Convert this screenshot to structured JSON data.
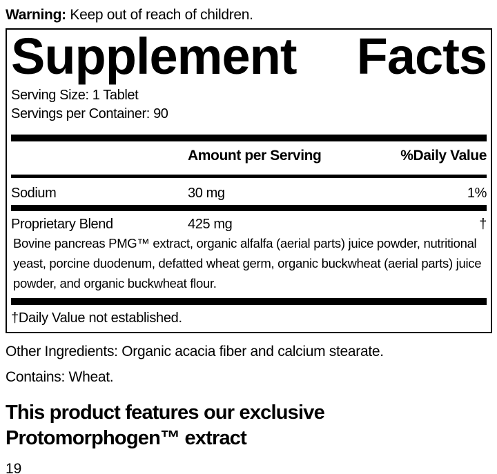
{
  "warning": {
    "label": "Warning:",
    "text": "Keep out of reach of children."
  },
  "supplement_facts": {
    "title": "Supplement Facts",
    "serving_size": "Serving Size: 1 Tablet",
    "servings_per_container": "Servings per Container: 90",
    "columns": {
      "amount": "Amount per Serving",
      "daily_value": "%Daily Value"
    },
    "rows": [
      {
        "name": "Sodium",
        "amount": "30 mg",
        "daily_value": "1%"
      },
      {
        "name": "Proprietary Blend",
        "amount": "425 mg",
        "daily_value": "†"
      }
    ],
    "proprietary_blend_ingredients": "Bovine pancreas PMG™ extract, organic alfalfa (aerial parts) juice powder, nutritional yeast, porcine duodenum, defatted wheat germ, organic buckwheat (aerial parts) juice powder, and organic buckwheat flour.",
    "footnote": "†Daily Value not established."
  },
  "other_ingredients": "Other Ingredients: Organic acacia fiber and calcium stearate.",
  "contains": "Contains: Wheat.",
  "feature_statement": "This product features our exclusive Protomorphogen™ extract",
  "page_number": "19",
  "colors": {
    "text": "#000000",
    "background": "#ffffff",
    "rule": "#000000"
  }
}
